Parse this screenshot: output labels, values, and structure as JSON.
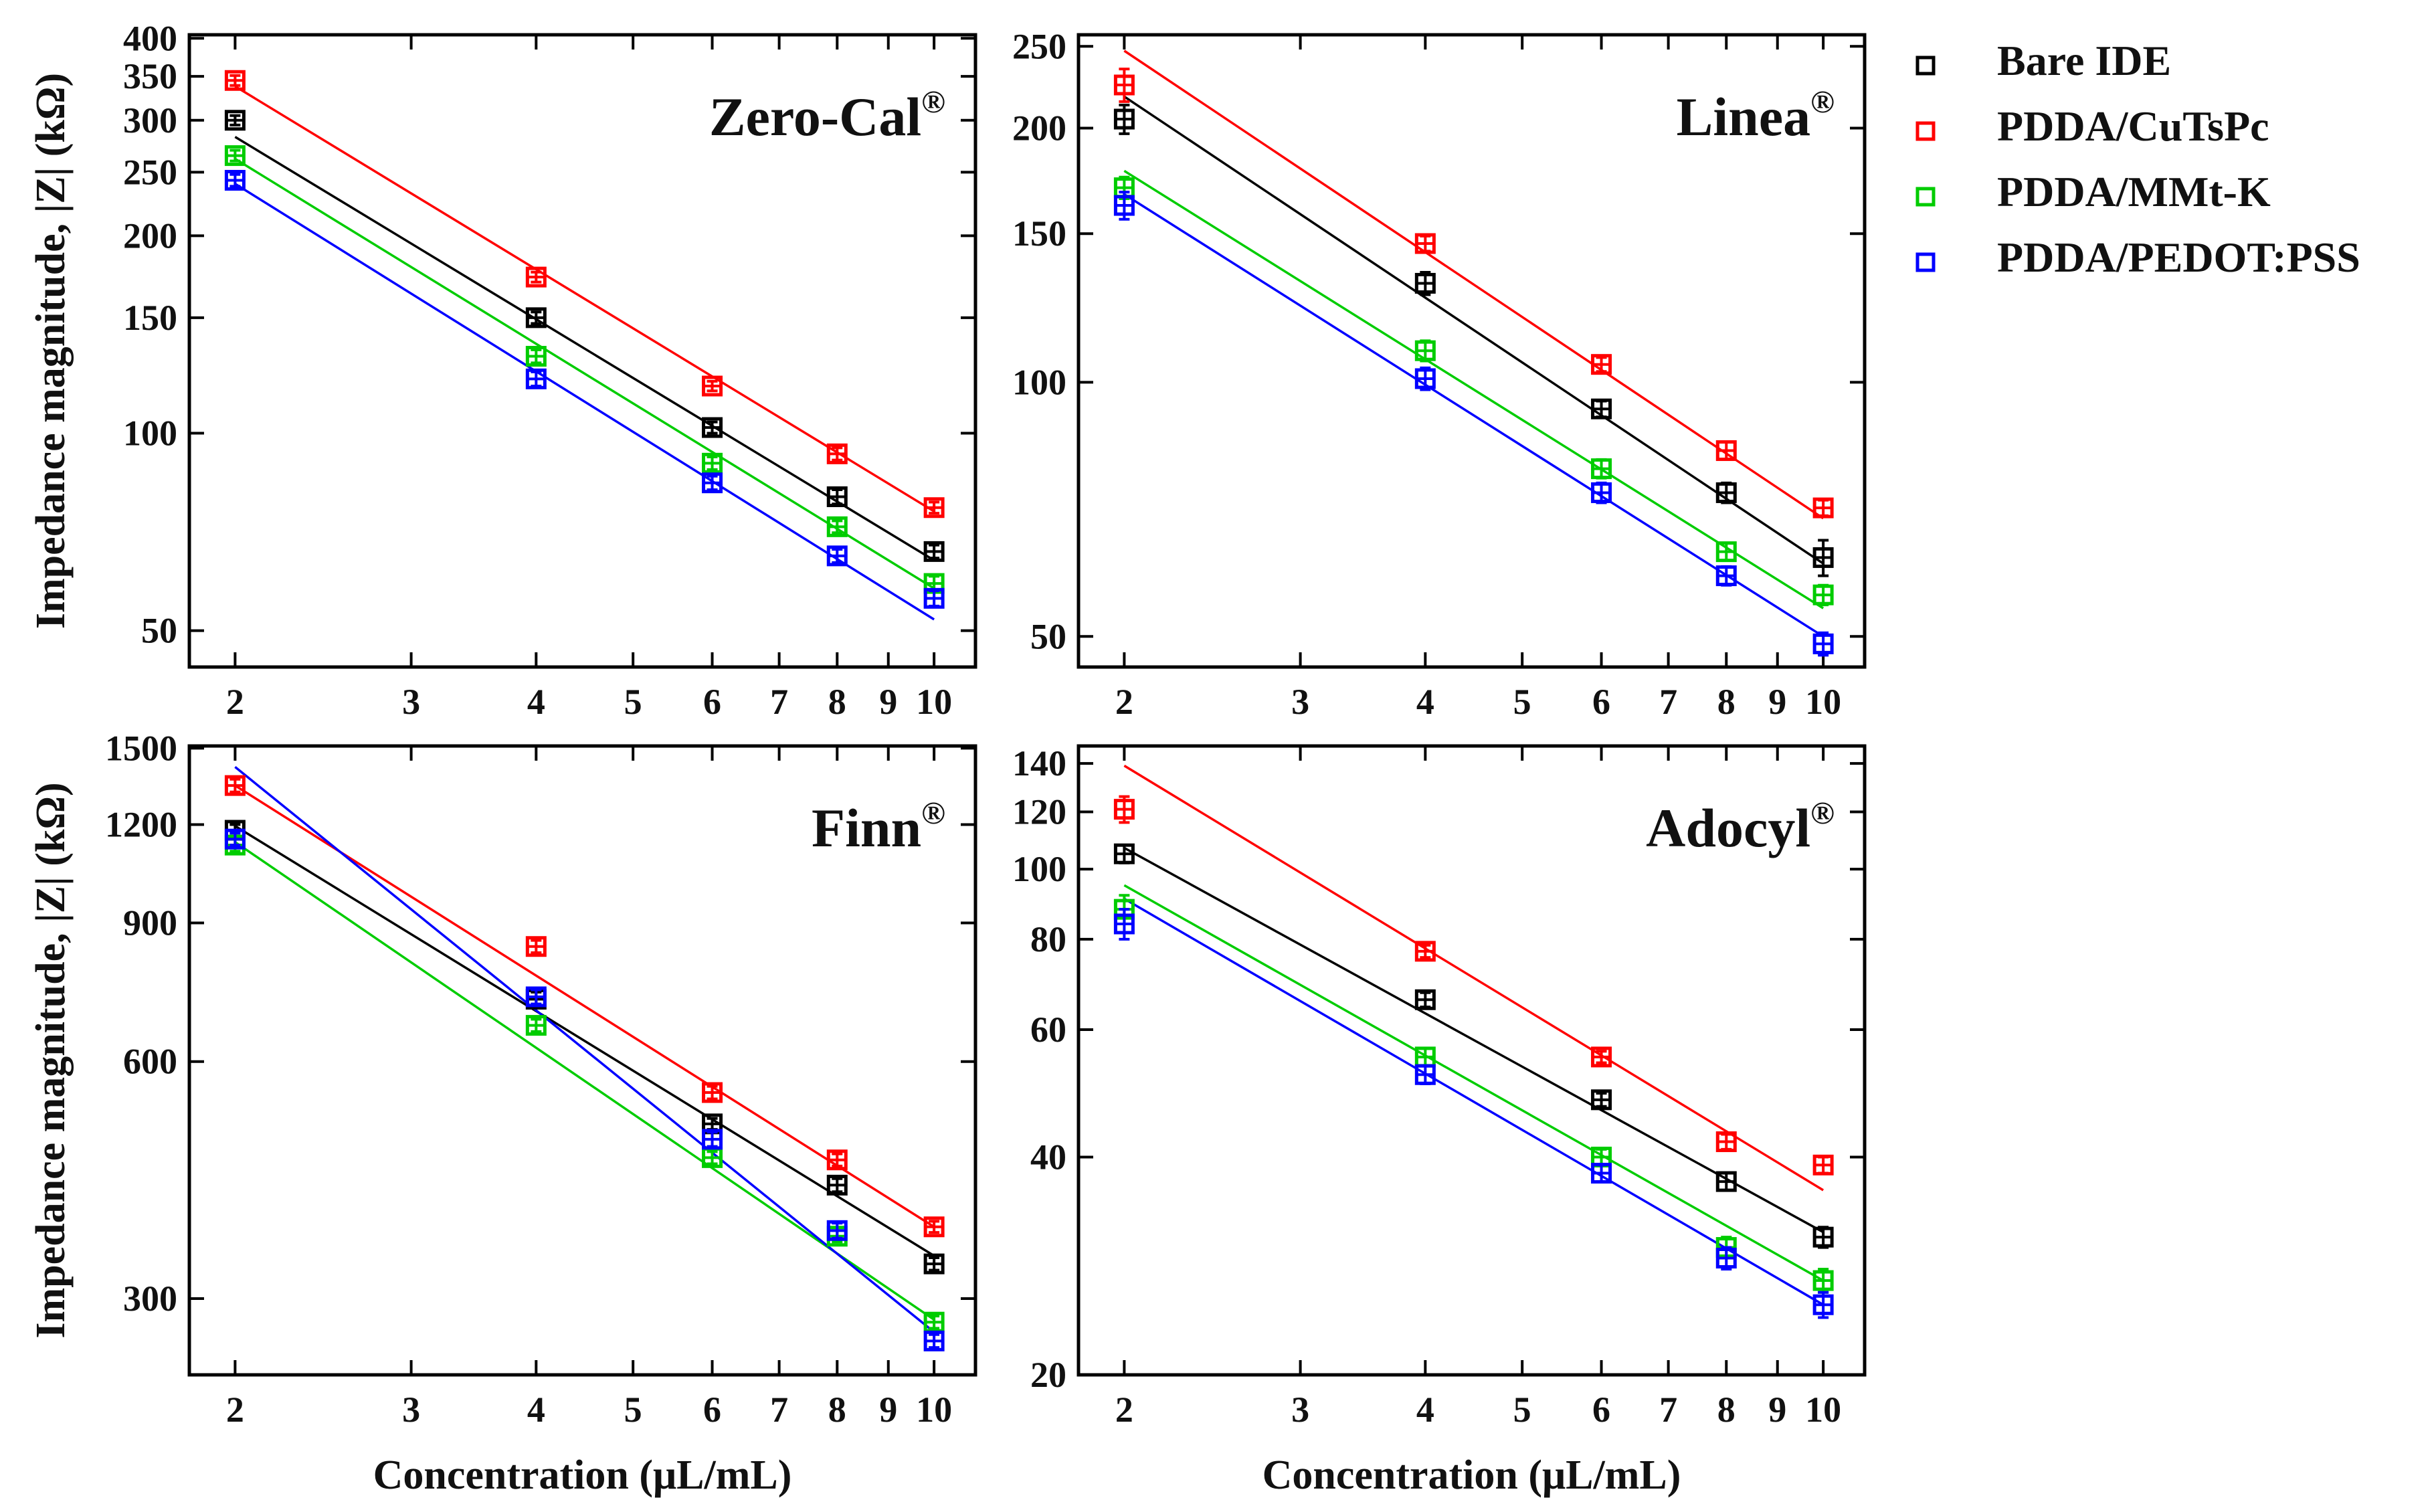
{
  "chart_data": [
    {
      "type": "scatter",
      "title": "Zero-Cal",
      "title_superscript": "®",
      "xscale": "log",
      "yscale": "log",
      "xlim": [
        1.8,
        11
      ],
      "ylim": [
        44,
        405
      ],
      "xticks": [
        2,
        3,
        4,
        5,
        6,
        7,
        8,
        9,
        10
      ],
      "yticks": [
        50,
        100,
        150,
        200,
        250,
        300,
        350,
        400
      ],
      "x": [
        2,
        4,
        6,
        8,
        10
      ],
      "series": [
        {
          "name": "Bare IDE",
          "color": "#000000",
          "values": [
            300,
            150,
            102,
            80,
            66
          ],
          "errors": [
            5,
            3,
            2,
            2,
            1.5
          ]
        },
        {
          "name": "PDDA/CuTsPc",
          "color": "#ff0000",
          "values": [
            345,
            173,
            118,
            93,
            77
          ],
          "errors": [
            6,
            3,
            2,
            2,
            1.5
          ]
        },
        {
          "name": "PDDA/MMt-K",
          "color": "#00cc00",
          "values": [
            265,
            131,
            90,
            72,
            59
          ],
          "errors": [
            5,
            3,
            2,
            1.5,
            1.5
          ]
        },
        {
          "name": "PDDA/PEDOT:PSS",
          "color": "#0000ff",
          "values": [
            243,
            121,
            84,
            65,
            56
          ],
          "errors": [
            5,
            3,
            2,
            1.5,
            1.5
          ]
        }
      ],
      "fits": [
        {
          "name": "Bare IDE",
          "from": [
            2,
            283
          ],
          "to": [
            10,
            64
          ]
        },
        {
          "name": "PDDA/CuTsPc",
          "from": [
            2,
            338
          ],
          "to": [
            10,
            76
          ]
        },
        {
          "name": "PDDA/MMt-K",
          "from": [
            2,
            262
          ],
          "to": [
            10,
            58
          ]
        },
        {
          "name": "PDDA/PEDOT:PSS",
          "from": [
            2,
            240
          ],
          "to": [
            10,
            52
          ]
        }
      ],
      "show_ylabel": true,
      "show_xlabel": false
    },
    {
      "type": "scatter",
      "title": "Linea",
      "title_superscript": "®",
      "xscale": "log",
      "yscale": "log",
      "xlim": [
        1.8,
        11
      ],
      "ylim": [
        46,
        258
      ],
      "xticks": [
        2,
        3,
        4,
        5,
        6,
        7,
        8,
        9,
        10
      ],
      "yticks": [
        50,
        100,
        150,
        200,
        250
      ],
      "x": [
        2,
        4,
        6,
        8,
        10
      ],
      "series": [
        {
          "name": "Bare IDE",
          "color": "#000000",
          "values": [
            205,
            131,
            93,
            74,
            62
          ],
          "errors": [
            8,
            4,
            2,
            2,
            3
          ]
        },
        {
          "name": "PDDA/CuTsPc",
          "color": "#ff0000",
          "values": [
            225,
            146,
            105,
            83,
            71
          ],
          "errors": [
            10,
            3,
            2,
            2,
            1.5
          ]
        },
        {
          "name": "PDDA/MMt-K",
          "color": "#00cc00",
          "values": [
            170,
            109,
            79,
            63,
            56
          ],
          "errors": [
            5,
            3,
            2,
            1.5,
            1.5
          ]
        },
        {
          "name": "PDDA/PEDOT:PSS",
          "color": "#0000ff",
          "values": [
            162,
            101,
            74,
            59,
            49
          ],
          "errors": [
            6,
            3,
            2,
            1.5,
            1.5
          ]
        }
      ],
      "fits": [
        {
          "name": "Bare IDE",
          "from": [
            2,
            218
          ],
          "to": [
            10,
            61
          ]
        },
        {
          "name": "PDDA/CuTsPc",
          "from": [
            2,
            247
          ],
          "to": [
            10,
            69
          ]
        },
        {
          "name": "PDDA/MMt-K",
          "from": [
            2,
            178
          ],
          "to": [
            10,
            54
          ]
        },
        {
          "name": "PDDA/PEDOT:PSS",
          "from": [
            2,
            167
          ],
          "to": [
            10,
            50
          ]
        }
      ],
      "show_ylabel": false,
      "show_xlabel": false
    },
    {
      "type": "scatter",
      "title": "Finn",
      "title_superscript": "®",
      "xscale": "log",
      "yscale": "log",
      "xlim": [
        1.8,
        11
      ],
      "ylim": [
        240,
        1510
      ],
      "xticks": [
        2,
        3,
        4,
        5,
        6,
        7,
        8,
        9,
        10
      ],
      "yticks": [
        300,
        600,
        900,
        1200,
        1500
      ],
      "x": [
        2,
        4,
        6,
        8,
        10
      ],
      "series": [
        {
          "name": "Bare IDE",
          "color": "#000000",
          "values": [
            1180,
            720,
            500,
            418,
            332
          ],
          "errors": [
            20,
            15,
            8,
            8,
            6
          ]
        },
        {
          "name": "PDDA/CuTsPc",
          "color": "#ff0000",
          "values": [
            1345,
            840,
            548,
            450,
            370
          ],
          "errors": [
            25,
            15,
            10,
            8,
            6
          ]
        },
        {
          "name": "PDDA/MMt-K",
          "color": "#00cc00",
          "values": [
            1130,
            667,
            453,
            360,
            280
          ],
          "errors": [
            20,
            12,
            8,
            6,
            5
          ]
        },
        {
          "name": "PDDA/PEDOT:PSS",
          "color": "#0000ff",
          "values": [
            1150,
            725,
            478,
            366,
            265
          ],
          "errors": [
            20,
            15,
            10,
            8,
            5
          ]
        }
      ],
      "fits": [
        {
          "name": "Bare IDE",
          "from": [
            2,
            1195
          ],
          "to": [
            10,
            340
          ]
        },
        {
          "name": "PDDA/CuTsPc",
          "from": [
            2,
            1345
          ],
          "to": [
            10,
            370
          ]
        },
        {
          "name": "PDDA/MMt-K",
          "from": [
            2,
            1140
          ],
          "to": [
            10,
            282
          ]
        },
        {
          "name": "PDDA/PEDOT:PSS",
          "from": [
            2,
            1420
          ],
          "to": [
            10,
            272
          ]
        }
      ],
      "show_ylabel": true,
      "show_xlabel": true
    },
    {
      "type": "scatter",
      "title": "Adocyl",
      "title_superscript": "®",
      "xscale": "log",
      "yscale": "log",
      "xlim": [
        1.8,
        11
      ],
      "ylim": [
        20,
        148
      ],
      "xticks": [
        2,
        3,
        4,
        5,
        6,
        7,
        8,
        9,
        10
      ],
      "yticks": [
        20,
        40,
        60,
        80,
        100,
        120,
        140
      ],
      "x": [
        2,
        4,
        6,
        8,
        10
      ],
      "series": [
        {
          "name": "Bare IDE",
          "color": "#000000",
          "values": [
            105,
            66,
            48,
            37,
            31
          ],
          "errors": [
            3,
            1.5,
            1,
            1,
            1
          ]
        },
        {
          "name": "PDDA/CuTsPc",
          "color": "#ff0000",
          "values": [
            121,
            77,
            55,
            42,
            39
          ],
          "errors": [
            5,
            1.5,
            1,
            1,
            1
          ]
        },
        {
          "name": "PDDA/MMt-K",
          "color": "#00cc00",
          "values": [
            88,
            55,
            40,
            30,
            27
          ],
          "errors": [
            4,
            1.5,
            1,
            1,
            1
          ]
        },
        {
          "name": "PDDA/PEDOT:PSS",
          "color": "#0000ff",
          "values": [
            84,
            52,
            38,
            29,
            25
          ],
          "errors": [
            4,
            1.5,
            1,
            1,
            1
          ]
        }
      ],
      "fits": [
        {
          "name": "Bare IDE",
          "from": [
            2,
            107
          ],
          "to": [
            10,
            31.5
          ]
        },
        {
          "name": "PDDA/CuTsPc",
          "from": [
            2,
            139
          ],
          "to": [
            10,
            36
          ]
        },
        {
          "name": "PDDA/MMt-K",
          "from": [
            2,
            95
          ],
          "to": [
            10,
            27
          ]
        },
        {
          "name": "PDDA/PEDOT:PSS",
          "from": [
            2,
            91
          ],
          "to": [
            10,
            25
          ]
        }
      ],
      "show_ylabel": false,
      "show_xlabel": true
    }
  ],
  "labels": {
    "ylabel": "Impedance magnitude, |Z| (kΩ)",
    "xlabel": "Concentration (μL/mL)"
  },
  "legend": {
    "placement": "right",
    "entries": [
      {
        "name": "Bare IDE",
        "color": "#000000"
      },
      {
        "name": "PDDA/CuTsPc",
        "color": "#ff0000"
      },
      {
        "name": "PDDA/MMt-K",
        "color": "#00cc00"
      },
      {
        "name": "PDDA/PEDOT:PSS",
        "color": "#0000ff"
      }
    ]
  }
}
